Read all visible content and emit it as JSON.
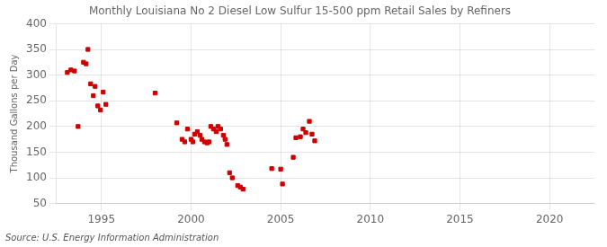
{
  "chart_data": {
    "type": "scatter",
    "title": "Monthly Louisiana No 2 Diesel Low Sulfur 15-500 ppm Retail Sales by Refiners",
    "ylabel": "Thousand Gallons per Day",
    "annotation": "Source: U.S. Energy Information Administration",
    "color": "#cc0000",
    "marker": "square",
    "grid": true,
    "xlim": [
      1992.5,
      2022.5
    ],
    "ylim": [
      50,
      400
    ],
    "xticks": [
      1995,
      2000,
      2005,
      2010,
      2015,
      2020
    ],
    "yticks": [
      50,
      100,
      150,
      200,
      250,
      300,
      350,
      400
    ],
    "x": [
      1993.1,
      1993.3,
      1993.5,
      1993.7,
      1994.0,
      1994.15,
      1994.25,
      1994.4,
      1994.55,
      1994.65,
      1994.8,
      1994.95,
      1995.1,
      1995.25,
      1998.0,
      1999.2,
      1999.5,
      1999.65,
      1999.8,
      2000.0,
      2000.1,
      2000.2,
      2000.35,
      2000.5,
      2000.6,
      2000.75,
      2000.9,
      2001.0,
      2001.1,
      2001.25,
      2001.4,
      2001.5,
      2001.65,
      2001.8,
      2001.9,
      2002.0,
      2002.15,
      2002.3,
      2002.6,
      2002.75,
      2002.9,
      2004.5,
      2005.0,
      2005.1,
      2005.7,
      2005.85,
      2006.1,
      2006.25,
      2006.4,
      2006.6,
      2006.75,
      2006.9
    ],
    "values": [
      305,
      310,
      308,
      200,
      325,
      322,
      350,
      283,
      260,
      278,
      240,
      232,
      267,
      243,
      265,
      207,
      175,
      170,
      195,
      175,
      170,
      185,
      190,
      183,
      175,
      170,
      168,
      170,
      200,
      195,
      190,
      200,
      195,
      183,
      175,
      165,
      110,
      100,
      85,
      82,
      78,
      118,
      117,
      88,
      140,
      178,
      180,
      195,
      188,
      210,
      185,
      172
    ]
  }
}
